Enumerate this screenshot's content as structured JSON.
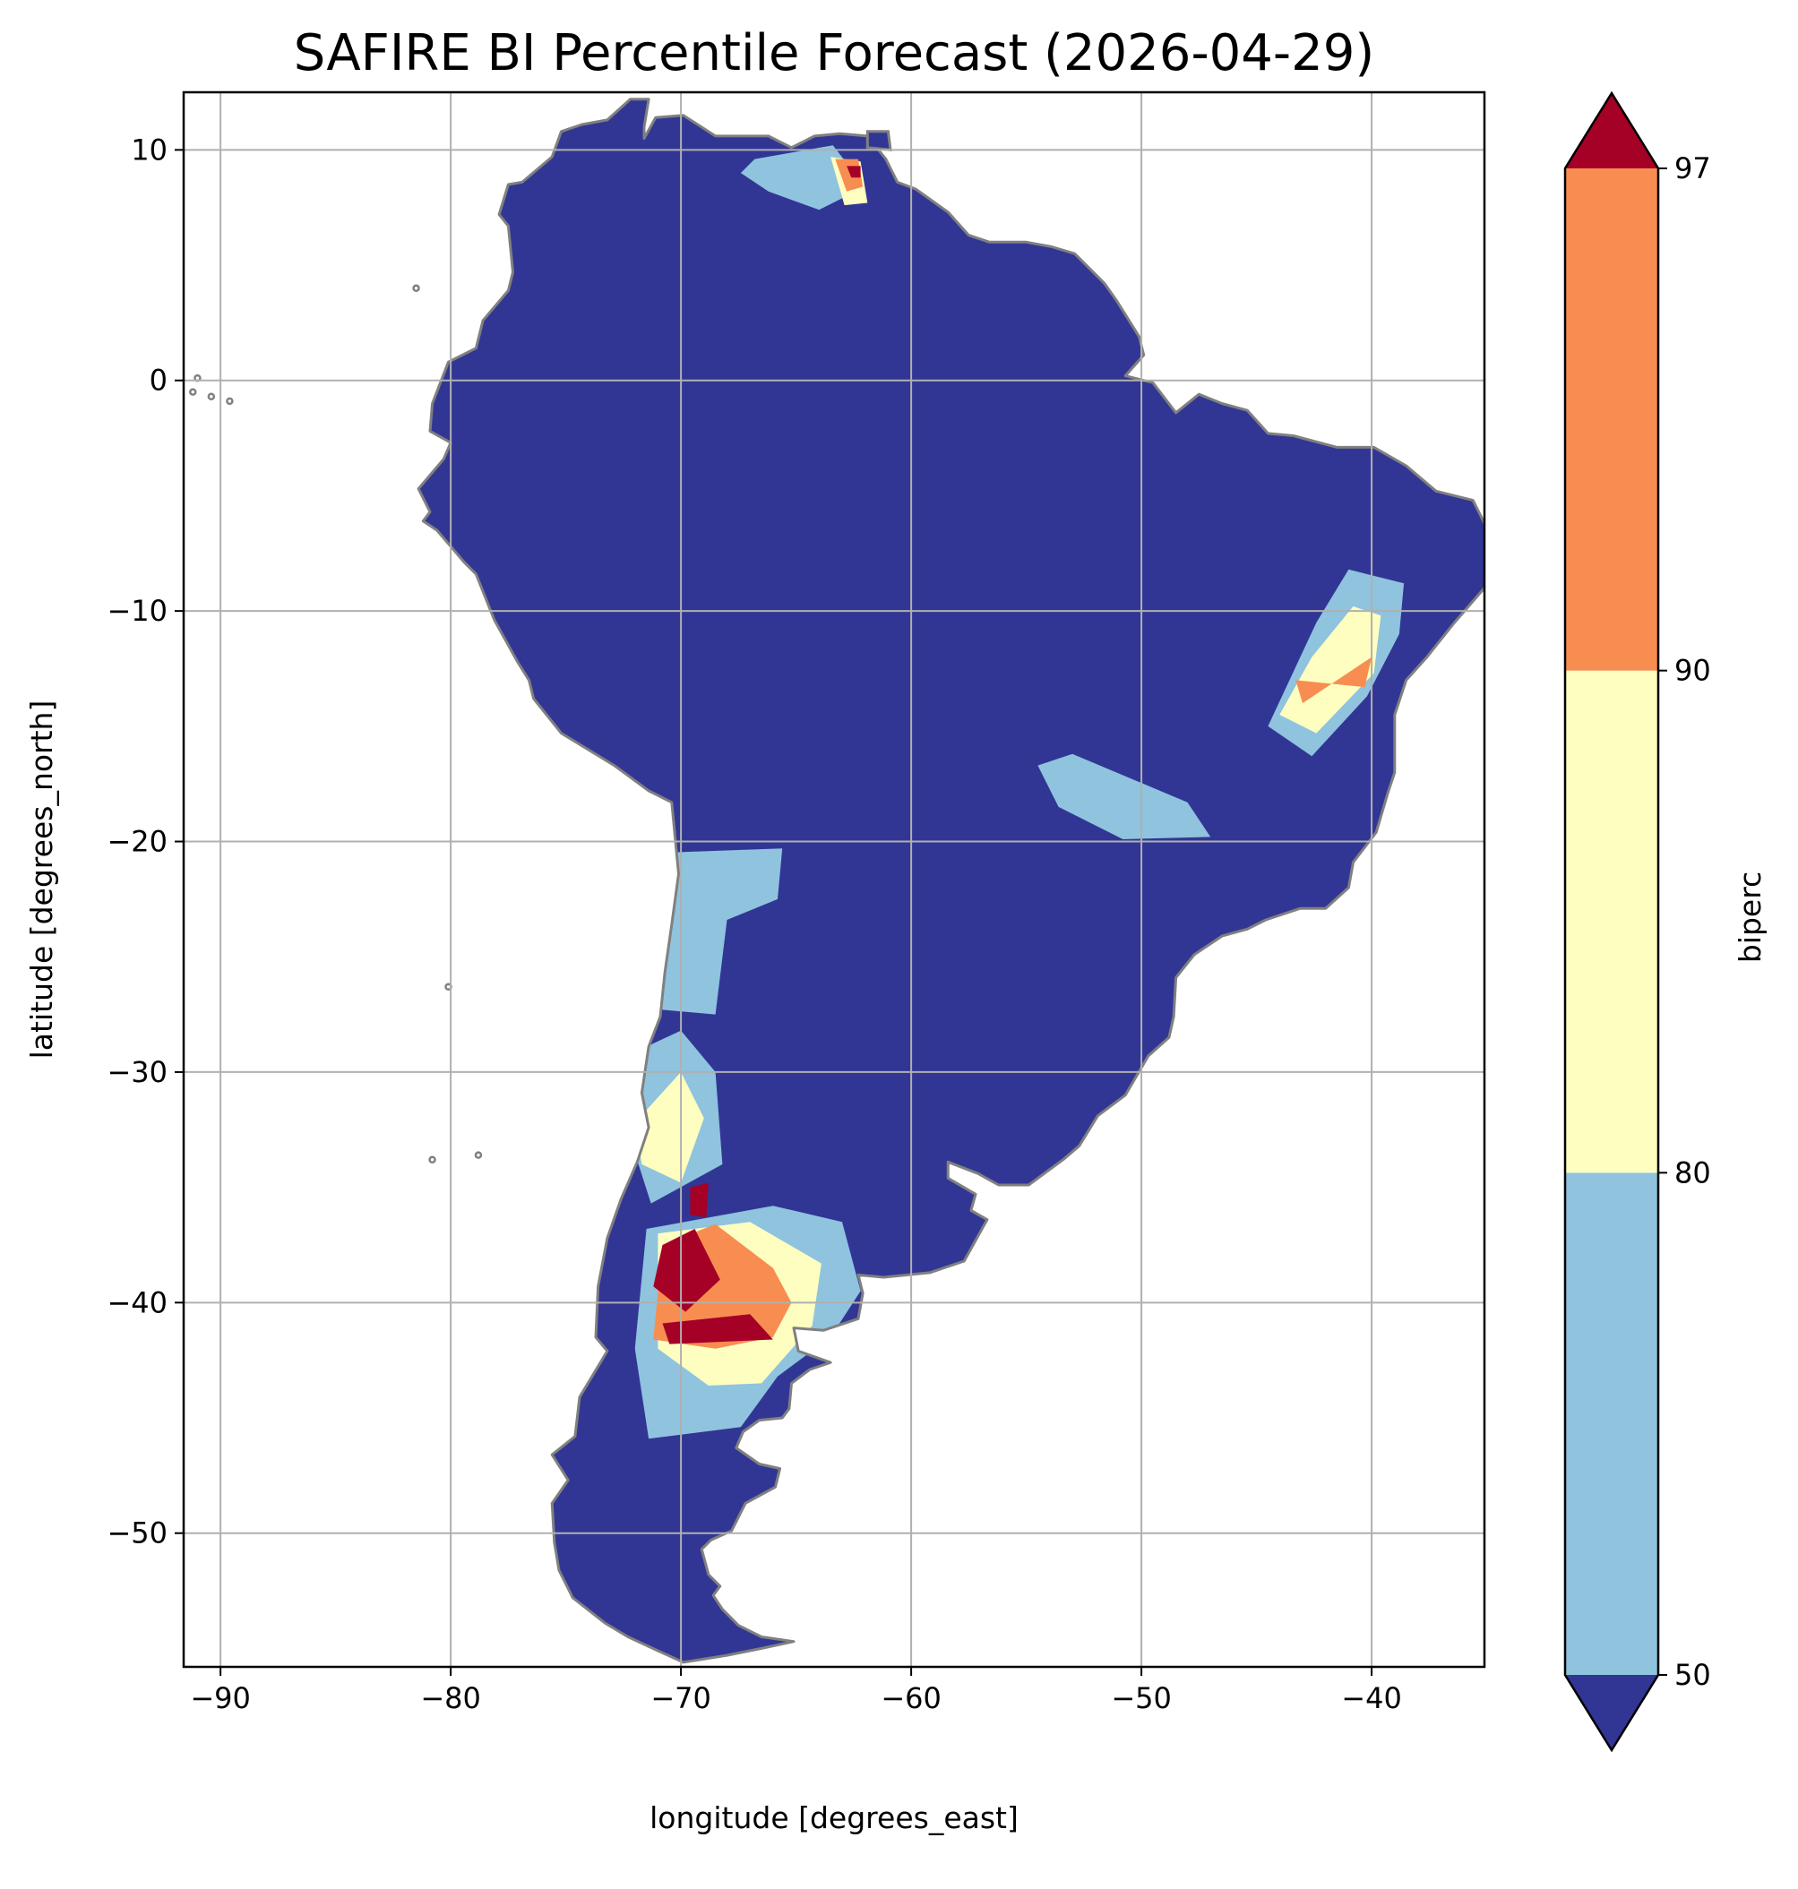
{
  "title": "SAFIRE BI Percentile Forecast (2026-04-29)",
  "xlabel": "longitude [degrees_east]",
  "ylabel": "latitude [degrees_north]",
  "colorbar": {
    "label": "biperc",
    "ticks": [
      "50",
      "80",
      "90",
      "97"
    ],
    "bands": [
      {
        "range": "<50",
        "color": "#313695"
      },
      {
        "range": "50-80",
        "color": "#8fc3de"
      },
      {
        "range": "80-90",
        "color": "#fefec0"
      },
      {
        "range": "90-97",
        "color": "#f88d51"
      },
      {
        "range": ">97",
        "color": "#a50026"
      }
    ]
  },
  "colors": {
    "ocean": "#ffffff",
    "land_base": "#313695",
    "borders": "#808080",
    "grid": "#b0b0b0"
  },
  "chart_data": {
    "type": "heatmap",
    "title": "SAFIRE BI Percentile Forecast (2026-04-29)",
    "xlabel": "longitude [degrees_east]",
    "ylabel": "latitude [degrees_north]",
    "xlim": [
      -91.6,
      -35.1
    ],
    "ylim": [
      -55.8,
      12.5
    ],
    "xticks": [
      -90,
      -80,
      -70,
      -60,
      -50,
      -40
    ],
    "xtick_labels": [
      "−90",
      "−80",
      "−70",
      "−60",
      "−50",
      "−40"
    ],
    "yticks": [
      10,
      0,
      -10,
      -20,
      -30,
      -40,
      -50
    ],
    "ytick_labels": [
      "10",
      "0",
      "−10",
      "−20",
      "−30",
      "−40",
      "−50"
    ],
    "grid": true,
    "colorbar_levels": [
      50,
      80,
      90,
      97
    ],
    "colorbar_extend": "both",
    "continent_outline": [
      [
        -77.5,
        8.5
      ],
      [
        -76.9,
        8.6
      ],
      [
        -75.6,
        9.7
      ],
      [
        -75.2,
        10.8
      ],
      [
        -74.3,
        11.1
      ],
      [
        -73.2,
        11.3
      ],
      [
        -72.2,
        12.2
      ],
      [
        -71.4,
        12.2
      ],
      [
        -71.6,
        11.0
      ],
      [
        -71.6,
        10.5
      ],
      [
        -71.1,
        11.4
      ],
      [
        -69.9,
        11.5
      ],
      [
        -68.5,
        10.6
      ],
      [
        -66.2,
        10.6
      ],
      [
        -65.2,
        10.1
      ],
      [
        -64.2,
        10.6
      ],
      [
        -63.1,
        10.7
      ],
      [
        -61.9,
        10.6
      ],
      [
        -61.1,
        9.6
      ],
      [
        -60.6,
        8.6
      ],
      [
        -59.8,
        8.3
      ],
      [
        -58.4,
        7.3
      ],
      [
        -57.5,
        6.3
      ],
      [
        -56.6,
        6.0
      ],
      [
        -55.0,
        6.0
      ],
      [
        -53.9,
        5.8
      ],
      [
        -52.9,
        5.5
      ],
      [
        -51.6,
        4.2
      ],
      [
        -51.1,
        3.5
      ],
      [
        -50.1,
        1.9
      ],
      [
        -49.9,
        1.1
      ],
      [
        -50.7,
        0.2
      ],
      [
        -49.5,
        -0.1
      ],
      [
        -48.5,
        -1.4
      ],
      [
        -47.5,
        -0.6
      ],
      [
        -46.5,
        -1.0
      ],
      [
        -45.4,
        -1.3
      ],
      [
        -44.5,
        -2.3
      ],
      [
        -43.4,
        -2.4
      ],
      [
        -41.5,
        -2.9
      ],
      [
        -39.9,
        -2.9
      ],
      [
        -38.5,
        -3.7
      ],
      [
        -37.2,
        -4.8
      ],
      [
        -35.6,
        -5.2
      ],
      [
        -35.1,
        -6.2
      ],
      [
        -34.8,
        -7.1
      ],
      [
        -35.1,
        -9.0
      ],
      [
        -36.4,
        -10.5
      ],
      [
        -37.6,
        -12.0
      ],
      [
        -38.5,
        -13.0
      ],
      [
        -39.0,
        -14.5
      ],
      [
        -39.0,
        -17.0
      ],
      [
        -39.3,
        -17.9
      ],
      [
        -39.8,
        -19.6
      ],
      [
        -40.8,
        -20.9
      ],
      [
        -41.0,
        -22.0
      ],
      [
        -42.0,
        -22.9
      ],
      [
        -43.1,
        -22.9
      ],
      [
        -44.6,
        -23.4
      ],
      [
        -45.4,
        -23.8
      ],
      [
        -46.5,
        -24.1
      ],
      [
        -47.7,
        -24.9
      ],
      [
        -48.5,
        -25.9
      ],
      [
        -48.6,
        -27.6
      ],
      [
        -48.8,
        -28.5
      ],
      [
        -49.7,
        -29.3
      ],
      [
        -50.7,
        -31.0
      ],
      [
        -51.9,
        -31.9
      ],
      [
        -52.7,
        -33.2
      ],
      [
        -53.4,
        -33.8
      ],
      [
        -54.9,
        -34.9
      ],
      [
        -56.2,
        -34.9
      ],
      [
        -57.1,
        -34.4
      ],
      [
        -58.4,
        -33.9
      ],
      [
        -58.4,
        -34.6
      ],
      [
        -57.2,
        -35.3
      ],
      [
        -57.4,
        -36.0
      ],
      [
        -56.7,
        -36.4
      ],
      [
        -57.7,
        -38.2
      ],
      [
        -59.2,
        -38.7
      ],
      [
        -61.2,
        -38.9
      ],
      [
        -62.3,
        -38.8
      ],
      [
        -62.1,
        -39.6
      ],
      [
        -62.3,
        -40.7
      ],
      [
        -63.8,
        -41.2
      ],
      [
        -65.1,
        -41.1
      ],
      [
        -64.9,
        -42.1
      ],
      [
        -63.5,
        -42.6
      ],
      [
        -64.4,
        -42.9
      ],
      [
        -65.2,
        -43.5
      ],
      [
        -65.3,
        -44.6
      ],
      [
        -65.6,
        -45.0
      ],
      [
        -66.6,
        -45.1
      ],
      [
        -67.3,
        -45.6
      ],
      [
        -67.6,
        -46.3
      ],
      [
        -66.6,
        -47.0
      ],
      [
        -65.7,
        -47.2
      ],
      [
        -65.9,
        -48.0
      ],
      [
        -67.2,
        -48.7
      ],
      [
        -67.8,
        -49.9
      ],
      [
        -68.7,
        -50.3
      ],
      [
        -69.1,
        -50.7
      ],
      [
        -68.8,
        -51.8
      ],
      [
        -68.3,
        -52.3
      ],
      [
        -68.6,
        -52.7
      ],
      [
        -68.2,
        -53.3
      ],
      [
        -67.5,
        -54.0
      ],
      [
        -66.5,
        -54.5
      ],
      [
        -65.1,
        -54.7
      ],
      [
        -66.5,
        -55.0
      ],
      [
        -68.0,
        -55.3
      ],
      [
        -69.9,
        -55.6
      ],
      [
        -71.0,
        -55.1
      ],
      [
        -72.3,
        -54.5
      ],
      [
        -73.3,
        -53.9
      ],
      [
        -74.7,
        -52.8
      ],
      [
        -75.3,
        -51.6
      ],
      [
        -75.5,
        -50.4
      ],
      [
        -75.6,
        -48.7
      ],
      [
        -74.9,
        -47.7
      ],
      [
        -75.6,
        -46.6
      ],
      [
        -74.6,
        -45.8
      ],
      [
        -74.4,
        -44.1
      ],
      [
        -73.2,
        -42.1
      ],
      [
        -73.7,
        -41.5
      ],
      [
        -73.6,
        -39.3
      ],
      [
        -73.2,
        -37.2
      ],
      [
        -72.6,
        -35.5
      ],
      [
        -71.9,
        -33.9
      ],
      [
        -71.4,
        -32.4
      ],
      [
        -71.7,
        -30.9
      ],
      [
        -71.4,
        -28.9
      ],
      [
        -70.9,
        -27.6
      ],
      [
        -70.7,
        -25.7
      ],
      [
        -70.4,
        -23.6
      ],
      [
        -70.1,
        -21.4
      ],
      [
        -70.4,
        -18.3
      ],
      [
        -71.4,
        -17.8
      ],
      [
        -72.9,
        -16.7
      ],
      [
        -75.2,
        -15.3
      ],
      [
        -76.4,
        -13.8
      ],
      [
        -76.6,
        -13.0
      ],
      [
        -77.1,
        -12.2
      ],
      [
        -78.1,
        -10.4
      ],
      [
        -78.9,
        -8.4
      ],
      [
        -79.4,
        -7.9
      ],
      [
        -80.6,
        -6.5
      ],
      [
        -81.2,
        -6.1
      ],
      [
        -80.9,
        -5.7
      ],
      [
        -81.4,
        -4.7
      ],
      [
        -80.3,
        -3.4
      ],
      [
        -80.0,
        -2.7
      ],
      [
        -80.9,
        -2.2
      ],
      [
        -80.8,
        -1.0
      ],
      [
        -80.1,
        0.8
      ],
      [
        -78.9,
        1.4
      ],
      [
        -78.6,
        2.6
      ],
      [
        -77.5,
        3.9
      ],
      [
        -77.3,
        4.7
      ],
      [
        -77.5,
        6.7
      ],
      [
        -77.9,
        7.2
      ],
      [
        -77.5,
        8.5
      ]
    ],
    "features": [
      {
        "name": "galapagos-islands",
        "type": "islands",
        "points": [
          [
            -91.2,
            -0.5
          ],
          [
            -90.4,
            -0.7
          ],
          [
            -89.6,
            -0.9
          ],
          [
            -91.0,
            0.1
          ]
        ]
      },
      {
        "name": "juan-fernandez-islands",
        "type": "islands",
        "points": [
          [
            -78.8,
            -33.6
          ],
          [
            -80.8,
            -33.8
          ]
        ]
      },
      {
        "name": "san-felix-island",
        "type": "islands",
        "points": [
          [
            -80.1,
            -26.3
          ]
        ]
      },
      {
        "name": "malpelo-island",
        "type": "islands",
        "points": [
          [
            -81.5,
            4.0
          ]
        ]
      },
      {
        "name": "trinidad-island",
        "type": "island",
        "points": [
          [
            -61.9,
            10.8
          ],
          [
            -61.0,
            10.8
          ],
          [
            -60.9,
            10.0
          ],
          [
            -61.9,
            10.1
          ]
        ]
      }
    ],
    "regions": [
      {
        "name": "venezuela-llanos",
        "category": "50-80",
        "points": [
          [
            -66.8,
            9.6
          ],
          [
            -63.4,
            10.2
          ],
          [
            -62.0,
            8.4
          ],
          [
            -64.0,
            7.4
          ],
          [
            -66.2,
            8.2
          ],
          [
            -67.4,
            9.0
          ]
        ]
      },
      {
        "name": "venezuela-hotspot-80-90",
        "category": "80-90",
        "points": [
          [
            -63.5,
            9.7
          ],
          [
            -62.2,
            9.5
          ],
          [
            -61.9,
            7.7
          ],
          [
            -62.9,
            7.6
          ]
        ]
      },
      {
        "name": "venezuela-hotspot-90-97",
        "category": "90-97",
        "points": [
          [
            -63.3,
            9.6
          ],
          [
            -62.3,
            9.6
          ],
          [
            -62.1,
            8.4
          ],
          [
            -62.8,
            8.2
          ]
        ]
      },
      {
        "name": "venezuela-hotspot-97",
        "category": ">97",
        "points": [
          [
            -62.8,
            9.3
          ],
          [
            -62.2,
            9.3
          ],
          [
            -62.2,
            8.8
          ],
          [
            -62.6,
            8.8
          ]
        ]
      },
      {
        "name": "brazil-northeast-bahia",
        "category": "50-80",
        "points": [
          [
            -44.5,
            -15.0
          ],
          [
            -42.4,
            -10.5
          ],
          [
            -41.0,
            -8.2
          ],
          [
            -38.6,
            -8.8
          ],
          [
            -38.8,
            -11.0
          ],
          [
            -40.2,
            -13.7
          ],
          [
            -42.6,
            -16.3
          ]
        ]
      },
      {
        "name": "brazil-northeast-80-90",
        "category": "80-90",
        "points": [
          [
            -44.0,
            -14.5
          ],
          [
            -42.6,
            -12.0
          ],
          [
            -40.8,
            -9.8
          ],
          [
            -39.6,
            -10.2
          ],
          [
            -39.9,
            -12.7
          ],
          [
            -42.4,
            -15.3
          ]
        ]
      },
      {
        "name": "brazil-northeast-90-97",
        "category": "90-97",
        "points": [
          [
            -43.3,
            -13.0
          ],
          [
            -43.0,
            -14.0
          ],
          [
            -40.0,
            -12.0
          ],
          [
            -40.3,
            -13.3
          ]
        ]
      },
      {
        "name": "brazil-centre-west",
        "category": "50-80",
        "points": [
          [
            -54.5,
            -16.7
          ],
          [
            -53.0,
            -16.2
          ],
          [
            -48.0,
            -18.3
          ],
          [
            -47.0,
            -19.8
          ],
          [
            -50.8,
            -19.9
          ],
          [
            -53.6,
            -18.5
          ]
        ]
      },
      {
        "name": "central-chile-argentina",
        "category": "50-80",
        "points": [
          [
            -72.8,
            -29.5
          ],
          [
            -70.0,
            -28.2
          ],
          [
            -68.5,
            -30.0
          ],
          [
            -68.2,
            -34.0
          ],
          [
            -71.3,
            -35.7
          ],
          [
            -72.2,
            -32.9
          ]
        ]
      },
      {
        "name": "central-chile-80-90",
        "category": "80-90",
        "points": [
          [
            -72.0,
            -32.2
          ],
          [
            -70.0,
            -30.0
          ],
          [
            -69.0,
            -32.0
          ],
          [
            -70.0,
            -34.8
          ],
          [
            -71.7,
            -34.0
          ]
        ]
      },
      {
        "name": "patagonia-argentina",
        "category": "50-80",
        "points": [
          [
            -71.5,
            -36.8
          ],
          [
            -66.0,
            -35.8
          ],
          [
            -63.0,
            -36.5
          ],
          [
            -62.2,
            -39.5
          ],
          [
            -63.5,
            -41.5
          ],
          [
            -65.8,
            -43.2
          ],
          [
            -67.4,
            -45.4
          ],
          [
            -71.4,
            -45.9
          ],
          [
            -72.0,
            -42.0
          ]
        ]
      },
      {
        "name": "patagonia-80-90",
        "category": "80-90",
        "points": [
          [
            -71.0,
            -37.0
          ],
          [
            -67.0,
            -36.5
          ],
          [
            -63.9,
            -38.3
          ],
          [
            -64.3,
            -41.0
          ],
          [
            -66.5,
            -43.5
          ],
          [
            -68.8,
            -43.6
          ],
          [
            -71.0,
            -42.0
          ]
        ]
      },
      {
        "name": "patagonia-90-97",
        "category": "90-97",
        "points": [
          [
            -70.8,
            -37.5
          ],
          [
            -68.5,
            -36.6
          ],
          [
            -66.0,
            -38.5
          ],
          [
            -65.2,
            -40.0
          ],
          [
            -66.0,
            -41.5
          ],
          [
            -68.5,
            -42.0
          ],
          [
            -71.2,
            -41.6
          ]
        ]
      },
      {
        "name": "patagonia-97",
        "category": ">97",
        "points": [
          [
            -70.8,
            -37.5
          ],
          [
            -69.4,
            -36.8
          ],
          [
            -68.3,
            -39.0
          ],
          [
            -69.8,
            -40.4
          ],
          [
            -71.2,
            -39.3
          ]
        ]
      },
      {
        "name": "patagonia-97-south",
        "category": ">97",
        "points": [
          [
            -70.8,
            -40.9
          ],
          [
            -67.0,
            -40.5
          ],
          [
            -66.0,
            -41.6
          ],
          [
            -70.5,
            -41.8
          ]
        ]
      },
      {
        "name": "mendoza-97",
        "category": ">97",
        "points": [
          [
            -69.6,
            -35.0
          ],
          [
            -68.8,
            -34.8
          ],
          [
            -68.9,
            -36.3
          ],
          [
            -69.6,
            -36.2
          ]
        ]
      },
      {
        "name": "andes-upper",
        "category": "50-80",
        "points": [
          [
            -71.2,
            -20.5
          ],
          [
            -65.6,
            -20.3
          ],
          [
            -65.8,
            -22.5
          ],
          [
            -68.0,
            -23.4
          ],
          [
            -68.5,
            -27.5
          ],
          [
            -70.8,
            -27.3
          ]
        ]
      }
    ]
  }
}
